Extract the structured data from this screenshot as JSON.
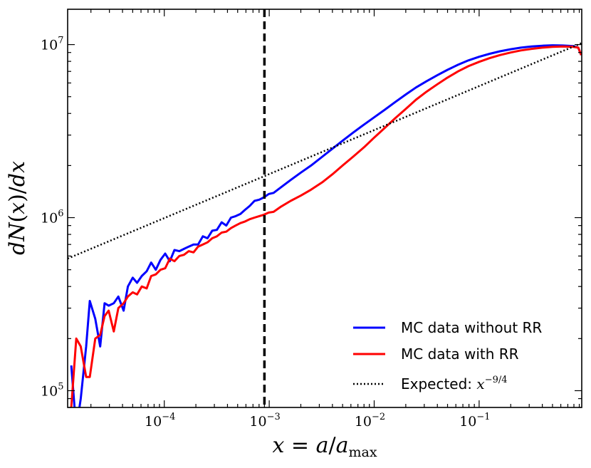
{
  "chart_data": {
    "type": "line",
    "title": "",
    "xlabel": "x = a/a_max",
    "ylabel": "dN(x)/dx",
    "xscale": "log",
    "yscale": "log",
    "xlim": [
      1.2e-05,
      0.95
    ],
    "ylim": [
      80000,
      16000000
    ],
    "x_ticks": [
      {
        "value": 0.0001,
        "base": "10",
        "exp": "−4"
      },
      {
        "value": 0.001,
        "base": "10",
        "exp": "−3"
      },
      {
        "value": 0.01,
        "base": "10",
        "exp": "−2"
      },
      {
        "value": 0.1,
        "base": "10",
        "exp": "−1"
      }
    ],
    "y_ticks": [
      {
        "value": 100000,
        "base": "10",
        "exp": "5"
      },
      {
        "value": 1000000,
        "base": "10",
        "exp": "6"
      },
      {
        "value": 10000000,
        "base": "10",
        "exp": "7"
      }
    ],
    "vline": {
      "x": 0.0009,
      "style": "dashed",
      "color": "#000000"
    },
    "legend_position": "bottom-right",
    "series": [
      {
        "name": "MC data without RR",
        "color": "#0000ff",
        "style": "solid",
        "x": [
          1.3e-05,
          1.45e-05,
          1.6e-05,
          1.8e-05,
          1.95e-05,
          2.2e-05,
          2.45e-05,
          2.7e-05,
          2.95e-05,
          3.3e-05,
          3.65e-05,
          4.1e-05,
          4.5e-05,
          5e-05,
          5.5e-05,
          6.1e-05,
          6.8e-05,
          7.5e-05,
          8.3e-05,
          9.2e-05,
          0.000102,
          0.000113,
          0.000125,
          0.000139,
          0.000154,
          0.000171,
          0.00019,
          0.00021,
          0.000233,
          0.000258,
          0.000286,
          0.000317,
          0.000352,
          0.00039,
          0.000432,
          0.000479,
          0.000531,
          0.000589,
          0.000653,
          0.000724,
          0.000803,
          0.00089,
          0.00099,
          0.0011,
          0.0013,
          0.0016,
          0.002,
          0.0025,
          0.0032,
          0.004,
          0.005,
          0.0063,
          0.008,
          0.01,
          0.0126,
          0.0158,
          0.02,
          0.025,
          0.0316,
          0.04,
          0.05,
          0.063,
          0.079,
          0.1,
          0.126,
          0.158,
          0.2,
          0.25,
          0.316,
          0.4,
          0.5,
          0.63,
          0.79,
          0.88,
          0.94
        ],
        "values": [
          140000,
          60000,
          90000,
          180000,
          330000,
          260000,
          180000,
          320000,
          310000,
          320000,
          350000,
          290000,
          400000,
          450000,
          420000,
          460000,
          490000,
          550000,
          500000,
          570000,
          620000,
          560000,
          650000,
          640000,
          660000,
          680000,
          700000,
          700000,
          780000,
          760000,
          840000,
          850000,
          940000,
          900000,
          1000000,
          1020000,
          1050000,
          1110000,
          1170000,
          1250000,
          1270000,
          1310000,
          1370000,
          1390000,
          1500000,
          1650000,
          1820000,
          2000000,
          2250000,
          2500000,
          2780000,
          3100000,
          3450000,
          3800000,
          4200000,
          4650000,
          5150000,
          5650000,
          6150000,
          6650000,
          7150000,
          7650000,
          8100000,
          8500000,
          8850000,
          9150000,
          9400000,
          9600000,
          9750000,
          9850000,
          9900000,
          9880000,
          9800000,
          9600000,
          8700000
        ]
      },
      {
        "name": "MC data with RR",
        "color": "#ff0000",
        "style": "solid",
        "x": [
          1.3e-05,
          1.45e-05,
          1.6e-05,
          1.8e-05,
          1.95e-05,
          2.2e-05,
          2.45e-05,
          2.7e-05,
          2.95e-05,
          3.3e-05,
          3.65e-05,
          4.1e-05,
          4.5e-05,
          5e-05,
          5.5e-05,
          6.1e-05,
          6.8e-05,
          7.5e-05,
          8.3e-05,
          9.2e-05,
          0.000102,
          0.000113,
          0.000125,
          0.000139,
          0.000154,
          0.000171,
          0.00019,
          0.00021,
          0.000233,
          0.000258,
          0.000286,
          0.000317,
          0.000352,
          0.00039,
          0.000432,
          0.000479,
          0.000531,
          0.000589,
          0.000653,
          0.000724,
          0.000803,
          0.00089,
          0.00099,
          0.0011,
          0.0013,
          0.0016,
          0.002,
          0.0025,
          0.0032,
          0.004,
          0.005,
          0.0063,
          0.008,
          0.01,
          0.0126,
          0.0158,
          0.02,
          0.025,
          0.0316,
          0.04,
          0.05,
          0.063,
          0.079,
          0.1,
          0.126,
          0.158,
          0.2,
          0.25,
          0.316,
          0.4,
          0.5,
          0.63,
          0.79,
          0.88,
          0.94
        ],
        "values": [
          80000,
          200000,
          180000,
          120000,
          120000,
          200000,
          210000,
          270000,
          290000,
          220000,
          300000,
          320000,
          350000,
          370000,
          360000,
          400000,
          390000,
          460000,
          470000,
          500000,
          510000,
          580000,
          560000,
          600000,
          610000,
          640000,
          630000,
          680000,
          700000,
          720000,
          760000,
          780000,
          820000,
          830000,
          870000,
          900000,
          930000,
          950000,
          980000,
          1000000,
          1020000,
          1040000,
          1070000,
          1080000,
          1160000,
          1250000,
          1340000,
          1450000,
          1600000,
          1780000,
          2000000,
          2250000,
          2550000,
          2900000,
          3300000,
          3750000,
          4250000,
          4800000,
          5350000,
          5900000,
          6450000,
          7000000,
          7500000,
          7950000,
          8350000,
          8700000,
          9000000,
          9250000,
          9450000,
          9600000,
          9700000,
          9750000,
          9700000,
          9600000,
          8700000
        ]
      },
      {
        "name": "Expected: ",
        "expr_base": "x",
        "expr_exp": "−9/4",
        "color": "#000000",
        "style": "dotted",
        "x": [
          1.2e-05,
          0.95
        ],
        "values": [
          580000,
          10200000
        ]
      }
    ]
  }
}
